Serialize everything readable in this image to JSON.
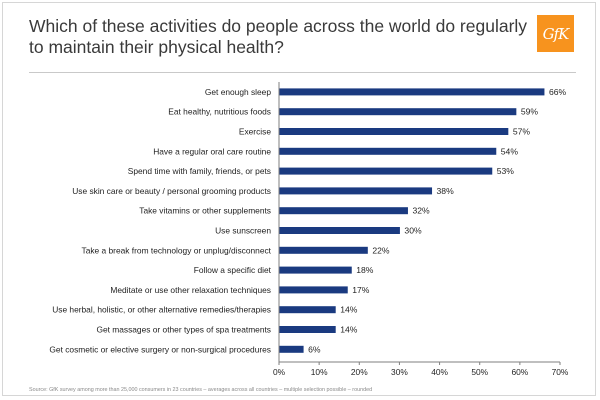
{
  "slide": {
    "title": "Which of these activities do people across the world do regularly to maintain their physical health?",
    "logo_text": "GfK",
    "source": "Source: GfK survey among more than 25,000 consumers in 23 countries – averages across all countries – multiple selection possible – rounded"
  },
  "colors": {
    "bar": "#1a3a80",
    "logo": "#f7931e",
    "axis": "#7f7f7f"
  },
  "chart_data": {
    "type": "bar",
    "orientation": "horizontal",
    "categories": [
      "Get enough sleep",
      "Eat healthy, nutritious foods",
      "Exercise",
      "Have a regular oral care routine",
      "Spend time with family, friends, or pets",
      "Use skin care or beauty / personal grooming products",
      "Take vitamins or other supplements",
      "Use sunscreen",
      "Take a break from technology or unplug/disconnect",
      "Follow a specific diet",
      "Meditate or use other relaxation techniques",
      "Use herbal, holistic, or other alternative remedies/therapies",
      "Get massages or other types of spa treatments",
      "Get cosmetic or elective surgery or non-surgical procedures"
    ],
    "values": [
      66,
      59,
      57,
      54,
      53,
      38,
      32,
      30,
      22,
      18,
      17,
      14,
      14,
      6
    ],
    "value_labels": [
      "66%",
      "59%",
      "57%",
      "54%",
      "53%",
      "38%",
      "32%",
      "30%",
      "22%",
      "18%",
      "17%",
      "14%",
      "14%",
      "6%"
    ],
    "xlim": [
      0,
      70
    ],
    "x_ticks": [
      "0%",
      "10%",
      "20%",
      "30%",
      "40%",
      "50%",
      "60%",
      "70%"
    ],
    "grid": false,
    "legend": "none"
  }
}
